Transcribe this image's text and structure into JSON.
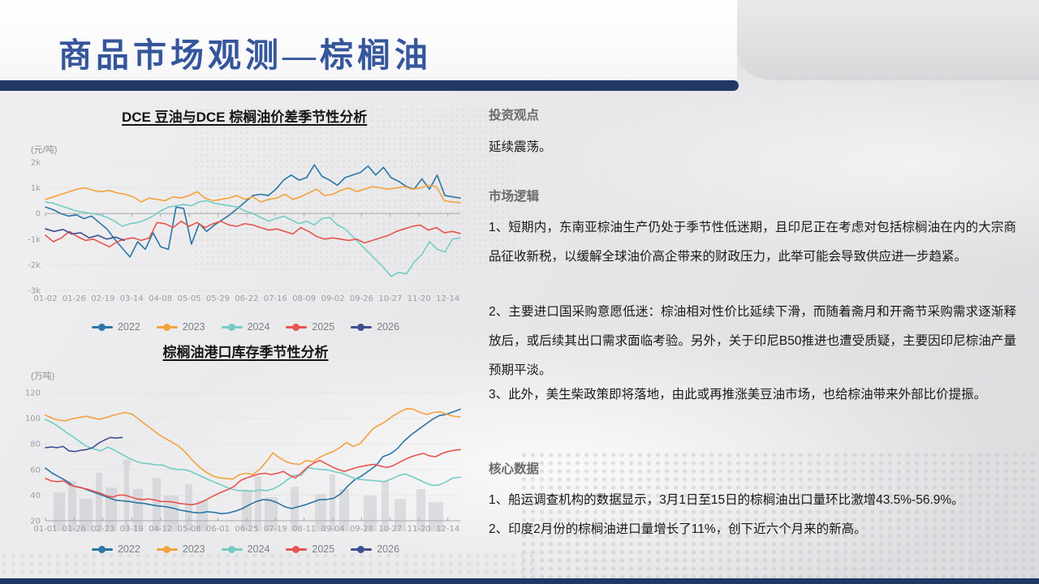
{
  "slide": {
    "title": "商品市场观测—棕榈油"
  },
  "theme": {
    "title_blue": "#35569b",
    "bar_navy": "#203864"
  },
  "panel": {
    "sections": [
      {
        "heading": "投资观点",
        "paras": [
          "延续震荡。"
        ]
      },
      {
        "heading": "市场逻辑",
        "paras": [
          "1、短期内，东南亚棕油生产仍处于季节性低迷期，且印尼正在考虑对包括棕榈油在内的大宗商品征收新税，以缓解全球油价高企带来的财政压力，此举可能会导致供应进一步趋紧。",
          "2、主要进口国采购意愿低迷：棕油相对性价比延续下滑，而随着斋月和开斋节采购需求逐渐释放后，或后续其出口需求面临考验。另外，关于印尼B50推进也遭受质疑，主要因印尼棕油产量预期平淡。",
          "3、此外，美生柴政策即将落地，由此或再推涨美豆油市场，也给棕油带来外部比价提振。"
        ]
      },
      {
        "heading": "核心数据",
        "paras": [
          "1、船运调查机构的数据显示，3月1日至15日的棕榈油出口量环比激增43.5%-56.9%。",
          "2、印度2月份的棕榈油进口量增长了11%，创下近六个月来的新高。"
        ]
      }
    ]
  },
  "chart_data": [
    {
      "type": "line",
      "title": "DCE 豆油与DCE 棕榈油价差季节性分析",
      "unit": "(元/吨)",
      "ymin": -3,
      "ymax": 2,
      "axis_at": 0,
      "grid": "dotted",
      "legend_position": "bottom",
      "yticks": [
        {
          "v": 2,
          "label": "2k"
        },
        {
          "v": 1,
          "label": "1k"
        },
        {
          "v": 0,
          "label": "0"
        },
        {
          "v": -1,
          "label": "-1k"
        },
        {
          "v": -2,
          "label": "-2k"
        },
        {
          "v": -3,
          "label": "-3k"
        }
      ],
      "xlabels": [
        "01-02",
        "01-26",
        "02-19",
        "03-14",
        "04-08",
        "05-05",
        "05-29",
        "06-22",
        "07-16",
        "08-09",
        "09-02",
        "09-26",
        "10-27",
        "11-20",
        "12-14"
      ],
      "series": [
        {
          "name": "2022",
          "color": "#2b76a6",
          "span": 1,
          "values": [
            0.25,
            0.15,
            0,
            -0.1,
            -0.05,
            -0.2,
            -0.1,
            -0.35,
            -0.6,
            -1,
            -1.35,
            -1.7,
            -1.1,
            -1.4,
            -0.75,
            -1.3,
            -1.4,
            0.25,
            0.2,
            -1.2,
            -0.4,
            -0.7,
            -0.45,
            -0.25,
            -0.05,
            0.2,
            0.45,
            0.7,
            0.75,
            0.7,
            0.95,
            1.3,
            1.5,
            1.3,
            1.4,
            1.9,
            1.45,
            1.3,
            1.1,
            1.4,
            1.5,
            1.6,
            1.85,
            1.5,
            1.8,
            1.4,
            1.25,
            1.05,
            0.95,
            1.35,
            0.95,
            1.5,
            0.7,
            0.65,
            0.6
          ]
        },
        {
          "name": "2023",
          "color": "#f4a23b",
          "span": 1,
          "values": [
            0.55,
            0.65,
            0.75,
            0.85,
            0.95,
            1,
            0.9,
            0.85,
            0.9,
            0.8,
            0.75,
            0.65,
            0.45,
            0.6,
            0.55,
            0.5,
            0.65,
            0.6,
            0.7,
            0.85,
            0.6,
            0.5,
            0.55,
            0.6,
            0.7,
            0.55,
            0.65,
            0.45,
            0.55,
            0.6,
            0.75,
            0.55,
            0.65,
            0.8,
            0.95,
            0.7,
            0.75,
            0.9,
            1,
            0.85,
            0.95,
            1.05,
            1,
            0.95,
            1,
            1.05,
            0.95,
            1,
            1.1,
            1.05,
            0.5,
            0.45,
            0.42
          ]
        },
        {
          "name": "2024",
          "color": "#74ccc4",
          "span": 1,
          "values": [
            0.45,
            0.4,
            0.3,
            0.2,
            0.1,
            0.05,
            0,
            -0.05,
            -0.15,
            -0.3,
            -0.5,
            -0.4,
            -0.35,
            -0.25,
            -0.1,
            0.1,
            0.25,
            0.3,
            0.35,
            0.3,
            0.45,
            0.5,
            0.4,
            0.35,
            0.3,
            0.25,
            0.1,
            0,
            -0.15,
            -0.3,
            -0.2,
            -0.1,
            -0.25,
            -0.4,
            -0.3,
            -0.45,
            -0.2,
            -0.15,
            -0.45,
            -0.6,
            -0.9,
            -1.2,
            -1.5,
            -1.8,
            -2.1,
            -2.45,
            -2.3,
            -2.35,
            -1.9,
            -1.6,
            -1.1,
            -1.4,
            -1.5,
            -1,
            -0.95
          ]
        },
        {
          "name": "2025",
          "color": "#e8544d",
          "span": 1,
          "values": [
            -0.85,
            -1.1,
            -0.95,
            -0.7,
            -0.9,
            -1.05,
            -1,
            -1.15,
            -1.3,
            -1.1,
            -1,
            -0.95,
            -1.05,
            -0.95,
            -0.35,
            -0.4,
            -0.55,
            -0.3,
            -0.5,
            -0.35,
            -0.55,
            -0.4,
            -0.3,
            -0.45,
            -0.5,
            -0.4,
            -0.45,
            -0.55,
            -0.65,
            -0.6,
            -0.7,
            -0.8,
            -0.55,
            -0.7,
            -0.9,
            -1,
            -0.95,
            -1,
            -1.05,
            -1,
            -1.15,
            -1.05,
            -0.95,
            -0.85,
            -0.7,
            -0.6,
            -0.5,
            -0.45,
            -0.65,
            -0.55,
            -0.75,
            -0.7,
            -0.78
          ]
        },
        {
          "name": "2026",
          "color": "#3f4f92",
          "span": 0.19,
          "values": [
            -0.6,
            -0.7,
            -0.62,
            -0.8,
            -0.75,
            -0.95,
            -0.85,
            -1,
            -0.92,
            -1.05
          ]
        }
      ]
    },
    {
      "type": "line",
      "title": "棕榈油港口库存季节性分析",
      "unit": "(万吨)",
      "ymin": 20,
      "ymax": 120,
      "axis_at": 20,
      "grid": "dotted",
      "legend_position": "bottom",
      "yticks": [
        {
          "v": 120,
          "label": "120"
        },
        {
          "v": 100,
          "label": "100"
        },
        {
          "v": 80,
          "label": "80"
        },
        {
          "v": 60,
          "label": "60"
        },
        {
          "v": 40,
          "label": "40"
        },
        {
          "v": 20,
          "label": "20"
        }
      ],
      "xlabels": [
        "01-01",
        "01-26",
        "02-23",
        "03-19",
        "04-12",
        "05-08",
        "06-01",
        "06-25",
        "07-19",
        "08-11",
        "09-04",
        "09-28",
        "10-27",
        "11-20",
        "12-14"
      ],
      "series": [
        {
          "name": "2022",
          "color": "#2b76a6",
          "span": 1,
          "values": [
            61,
            57,
            54,
            51,
            47,
            46,
            44,
            42,
            40,
            38,
            36,
            35.5,
            35,
            34,
            33.5,
            32.5,
            31.5,
            31,
            30,
            28.5,
            27.5,
            26.5,
            26,
            27,
            26.5,
            25.5,
            26,
            27.5,
            29.5,
            32.5,
            35,
            36.5,
            36,
            34,
            31,
            29.5,
            31,
            32.5,
            34.5,
            36.5,
            36.5,
            37.5,
            41,
            47,
            52,
            55,
            59,
            63,
            70,
            72,
            76,
            82,
            87,
            91,
            95,
            99,
            102,
            103,
            105,
            107
          ]
        },
        {
          "name": "2023",
          "color": "#f4a23b",
          "span": 1,
          "values": [
            102.5,
            100,
            98.5,
            98,
            99.5,
            100.5,
            101.5,
            100.5,
            99,
            100.5,
            102,
            103.5,
            104.5,
            103,
            99,
            95,
            91,
            87,
            84,
            81,
            78,
            73,
            67,
            62,
            58,
            55,
            53.5,
            53,
            52.5,
            56,
            57,
            56,
            60,
            66,
            73,
            69,
            66,
            64.5,
            64,
            67,
            66,
            69.5,
            72,
            74,
            77,
            81,
            78,
            80,
            86,
            92,
            95,
            98,
            102,
            105,
            107.5,
            107,
            104.5,
            103,
            104.5,
            105,
            103,
            101.5,
            101
          ]
        },
        {
          "name": "2024",
          "color": "#74ccc4",
          "span": 1,
          "values": [
            99,
            96.5,
            93,
            89,
            85.5,
            81.5,
            78,
            76,
            74.5,
            77.5,
            75,
            72,
            69,
            66.5,
            65,
            64.5,
            63.5,
            63.5,
            61,
            60,
            60,
            58.5,
            56,
            53.5,
            51,
            49,
            46.5,
            44.5,
            43.5,
            43.5,
            43,
            44,
            43.5,
            45,
            48,
            52,
            55.5,
            55.5,
            61.5,
            60.5,
            60,
            59.5,
            58,
            57,
            54.5,
            52.5,
            52,
            51.5,
            51,
            50.5,
            52.5,
            55,
            56.5,
            54.5,
            52,
            49.5,
            47.5,
            48,
            50.5,
            53.5,
            54
          ]
        },
        {
          "name": "2025",
          "color": "#e8544d",
          "span": 1,
          "values": [
            53,
            51,
            50.5,
            51,
            48,
            46.5,
            45.5,
            44.5,
            43,
            41.5,
            39.5,
            38.5,
            40,
            40,
            38.5,
            37,
            36.5,
            37,
            36,
            35,
            35,
            34.5,
            33.5,
            33,
            32.5,
            33.5,
            35.5,
            38,
            40.5,
            42.5,
            44.5,
            47,
            51.5,
            53.5,
            55,
            56.5,
            57,
            56,
            57,
            58.5,
            55.5,
            53.5,
            57.5,
            62,
            65,
            67,
            64.5,
            62,
            60,
            58.5,
            60,
            61.5,
            62.5,
            63.5,
            64,
            62.5,
            61.5,
            63,
            65.5,
            68,
            70,
            71.5,
            72.5,
            70.5,
            70,
            72.5,
            74,
            75,
            75.5
          ]
        },
        {
          "name": "2026",
          "color": "#3f4f92",
          "span": 0.185,
          "values": [
            77,
            77.5,
            77,
            78,
            74.5,
            74,
            75,
            75.5,
            77,
            80.5,
            83,
            85,
            84.5,
            85
          ]
        }
      ]
    }
  ]
}
